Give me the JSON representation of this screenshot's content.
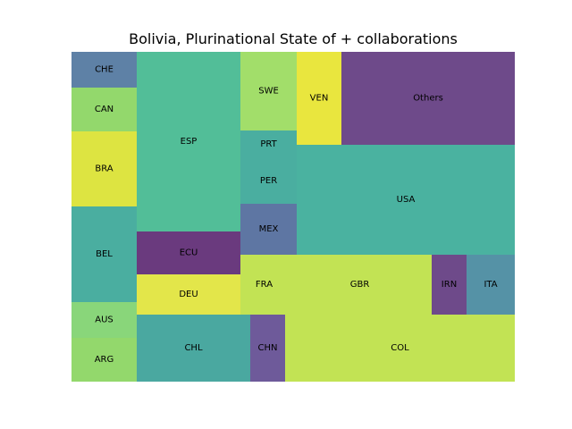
{
  "chart_data": {
    "type": "treemap",
    "title": "Bolivia, Plurinational State of + collaborations",
    "tiles": [
      {
        "label": "CHE",
        "color": "#5e81a6"
      },
      {
        "label": "CAN",
        "color": "#93d86c"
      },
      {
        "label": "BRA",
        "color": "#dde441"
      },
      {
        "label": "BEL",
        "color": "#4aaea0"
      },
      {
        "label": "AUS",
        "color": "#89d67a"
      },
      {
        "label": "ARG",
        "color": "#93d86c"
      },
      {
        "label": "ESP",
        "color": "#52be98"
      },
      {
        "label": "ECU",
        "color": "#6a3a7e"
      },
      {
        "label": "DEU",
        "color": "#e3e64a"
      },
      {
        "label": "CHL",
        "color": "#4aa8a0"
      },
      {
        "label": "SWE",
        "color": "#a2de6a"
      },
      {
        "label": "PRT",
        "color": "#4aaea0"
      },
      {
        "label": "PER",
        "color": "#4aaea0"
      },
      {
        "label": "MEX",
        "color": "#5e76a3"
      },
      {
        "label": "FRA",
        "color": "#c2e354"
      },
      {
        "label": "CHN",
        "color": "#6e5a9a"
      },
      {
        "label": "VEN",
        "color": "#e9e63e"
      },
      {
        "label": "Others",
        "color": "#6e4a8a"
      },
      {
        "label": "USA",
        "color": "#4ab2a0"
      },
      {
        "label": "GBR",
        "color": "#c2e354"
      },
      {
        "label": "IRN",
        "color": "#6e4a8a"
      },
      {
        "label": "ITA",
        "color": "#5592a6"
      },
      {
        "label": "COL",
        "color": "#c2e354"
      }
    ]
  }
}
